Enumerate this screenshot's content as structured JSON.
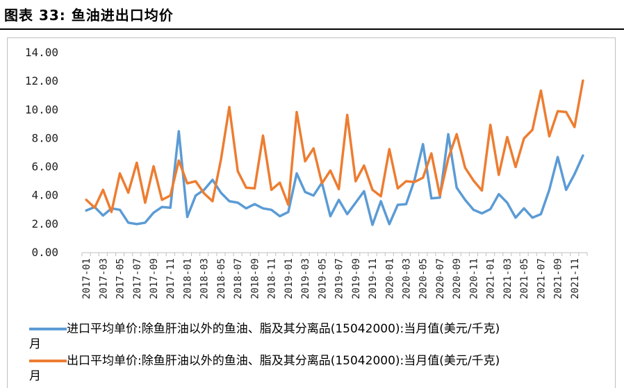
{
  "header": {
    "title": "图表 33: 鱼油进出口均价"
  },
  "colors": {
    "import": "#5b9bd5",
    "export": "#ed7d31"
  },
  "chart_data": {
    "type": "line",
    "ylim": [
      0,
      14
    ],
    "y_ticks": [
      "0.00",
      "2.00",
      "4.00",
      "6.00",
      "8.00",
      "10.00",
      "12.00",
      "14.00"
    ],
    "x": [
      "2017-01",
      "2017-02",
      "2017-03",
      "2017-04",
      "2017-05",
      "2017-06",
      "2017-07",
      "2017-08",
      "2017-09",
      "2017-10",
      "2017-11",
      "2017-12",
      "2018-01",
      "2018-02",
      "2018-03",
      "2018-04",
      "2018-05",
      "2018-06",
      "2018-07",
      "2018-08",
      "2018-09",
      "2018-10",
      "2018-11",
      "2018-12",
      "2019-01",
      "2019-02",
      "2019-03",
      "2019-04",
      "2019-05",
      "2019-06",
      "2019-07",
      "2019-08",
      "2019-09",
      "2019-10",
      "2019-11",
      "2019-12",
      "2020-01",
      "2020-02",
      "2020-03",
      "2020-04",
      "2020-05",
      "2020-06",
      "2020-07",
      "2020-08",
      "2020-09",
      "2020-10",
      "2020-11",
      "2020-12",
      "2021-01",
      "2021-02",
      "2021-03",
      "2021-04",
      "2021-05",
      "2021-06",
      "2021-07",
      "2021-08",
      "2021-09",
      "2021-10",
      "2021-11",
      "2021-12"
    ],
    "x_tick_labels": [
      "2017-01",
      "2017-03",
      "2017-05",
      "2017-07",
      "2017-09",
      "2017-11",
      "2018-01",
      "2018-03",
      "2018-05",
      "2018-07",
      "2018-09",
      "2018-11",
      "2019-01",
      "2019-03",
      "2019-05",
      "2019-07",
      "2019-09",
      "2019-11",
      "2020-01",
      "2020-03",
      "2020-05",
      "2020-07",
      "2020-09",
      "2020-11",
      "2021-01",
      "2021-03",
      "2021-05",
      "2021-07",
      "2021-09",
      "2021-11"
    ],
    "series": [
      {
        "name": "进口平均单价:除鱼肝油以外的鱼油、脂及其分离品(15042000):当月值(美元/千克)",
        "legend_line1": "进口平均单价:除鱼肝油以外的鱼油、脂及其分离品(15042000):当月值(美元/千克)",
        "legend_line2": "月",
        "color_key": "import",
        "values": [
          2.95,
          3.2,
          2.6,
          3.1,
          3.0,
          2.1,
          2.0,
          2.1,
          2.8,
          3.2,
          3.15,
          8.5,
          2.5,
          4.0,
          4.4,
          5.1,
          4.2,
          3.6,
          3.5,
          3.1,
          3.4,
          3.1,
          3.0,
          2.55,
          2.85,
          5.55,
          4.25,
          4.0,
          4.9,
          2.55,
          3.7,
          2.7,
          3.5,
          4.3,
          1.95,
          3.6,
          2.0,
          3.35,
          3.4,
          5.1,
          7.6,
          3.8,
          3.85,
          8.3,
          4.55,
          3.7,
          3.0,
          2.75,
          3.05,
          4.1,
          3.5,
          2.45,
          3.1,
          2.45,
          2.7,
          4.4,
          6.7,
          4.4,
          5.5,
          6.8
        ]
      },
      {
        "name": "出口平均单价:除鱼肝油以外的鱼油、脂及其分离品(15042000):当月值(美元/千克)",
        "legend_line1": "出口平均单价:除鱼肝油以外的鱼油、脂及其分离品(15042000):当月值(美元/千克)",
        "legend_line2": "月",
        "color_key": "export",
        "values": [
          3.7,
          3.15,
          4.4,
          2.85,
          5.55,
          4.2,
          6.3,
          3.5,
          6.05,
          3.7,
          4.0,
          6.45,
          4.85,
          5.0,
          4.15,
          3.6,
          6.5,
          10.2,
          5.7,
          4.55,
          4.5,
          8.2,
          4.4,
          4.9,
          3.35,
          9.85,
          6.4,
          7.3,
          4.85,
          5.75,
          4.45,
          9.65,
          5.0,
          6.1,
          4.4,
          3.95,
          7.25,
          4.5,
          5.0,
          4.95,
          5.25,
          6.95,
          4.0,
          6.6,
          8.3,
          5.95,
          5.05,
          4.35,
          8.95,
          5.45,
          8.1,
          6.0,
          8.0,
          8.6,
          11.35,
          8.15,
          9.9,
          9.85,
          8.8,
          12.05
        ]
      }
    ]
  }
}
